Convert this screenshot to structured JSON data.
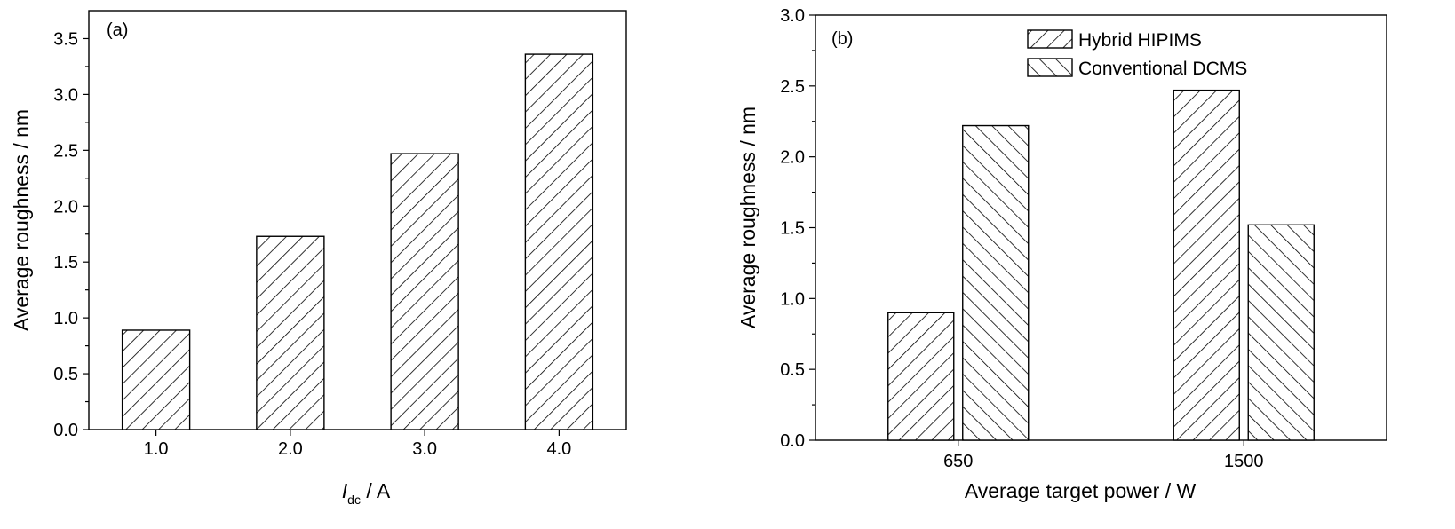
{
  "chart_data": [
    {
      "type": "bar",
      "panel_label": "(a)",
      "categories": [
        "1.0",
        "2.0",
        "3.0",
        "4.0"
      ],
      "values": [
        0.89,
        1.73,
        2.47,
        3.36
      ],
      "xlabel_main": "I",
      "xlabel_sub": "dc",
      "xlabel_rest": " / A",
      "ylabel": "Average roughness / nm",
      "ylim": [
        0,
        3.75
      ],
      "yticks": [
        "0.0",
        "0.5",
        "1.0",
        "1.5",
        "2.0",
        "2.5",
        "3.0",
        "3.5"
      ],
      "ytick_values": [
        0,
        0.5,
        1,
        1.5,
        2,
        2.5,
        3,
        3.5
      ],
      "grid": false,
      "colors": {
        "stroke": "#000000",
        "fill": "#ffffff"
      }
    },
    {
      "type": "bar",
      "panel_label": "(b)",
      "categories": [
        "650",
        "1500"
      ],
      "series": [
        {
          "name": "Hybrid HIPIMS",
          "values": [
            0.9,
            2.47
          ],
          "hatch": "forward"
        },
        {
          "name": "Conventional DCMS",
          "values": [
            2.22,
            1.52
          ],
          "hatch": "backward"
        }
      ],
      "xlabel": "Average target power / W",
      "ylabel": "Average roughness / nm",
      "ylim": [
        0,
        3.0
      ],
      "yticks": [
        "0.0",
        "0.5",
        "1.0",
        "1.5",
        "2.0",
        "2.5",
        "3.0"
      ],
      "ytick_values": [
        0,
        0.5,
        1,
        1.5,
        2,
        2.5,
        3
      ],
      "legend": "top-center",
      "grid": false,
      "colors": {
        "stroke": "#000000",
        "fill": "#ffffff"
      }
    }
  ]
}
